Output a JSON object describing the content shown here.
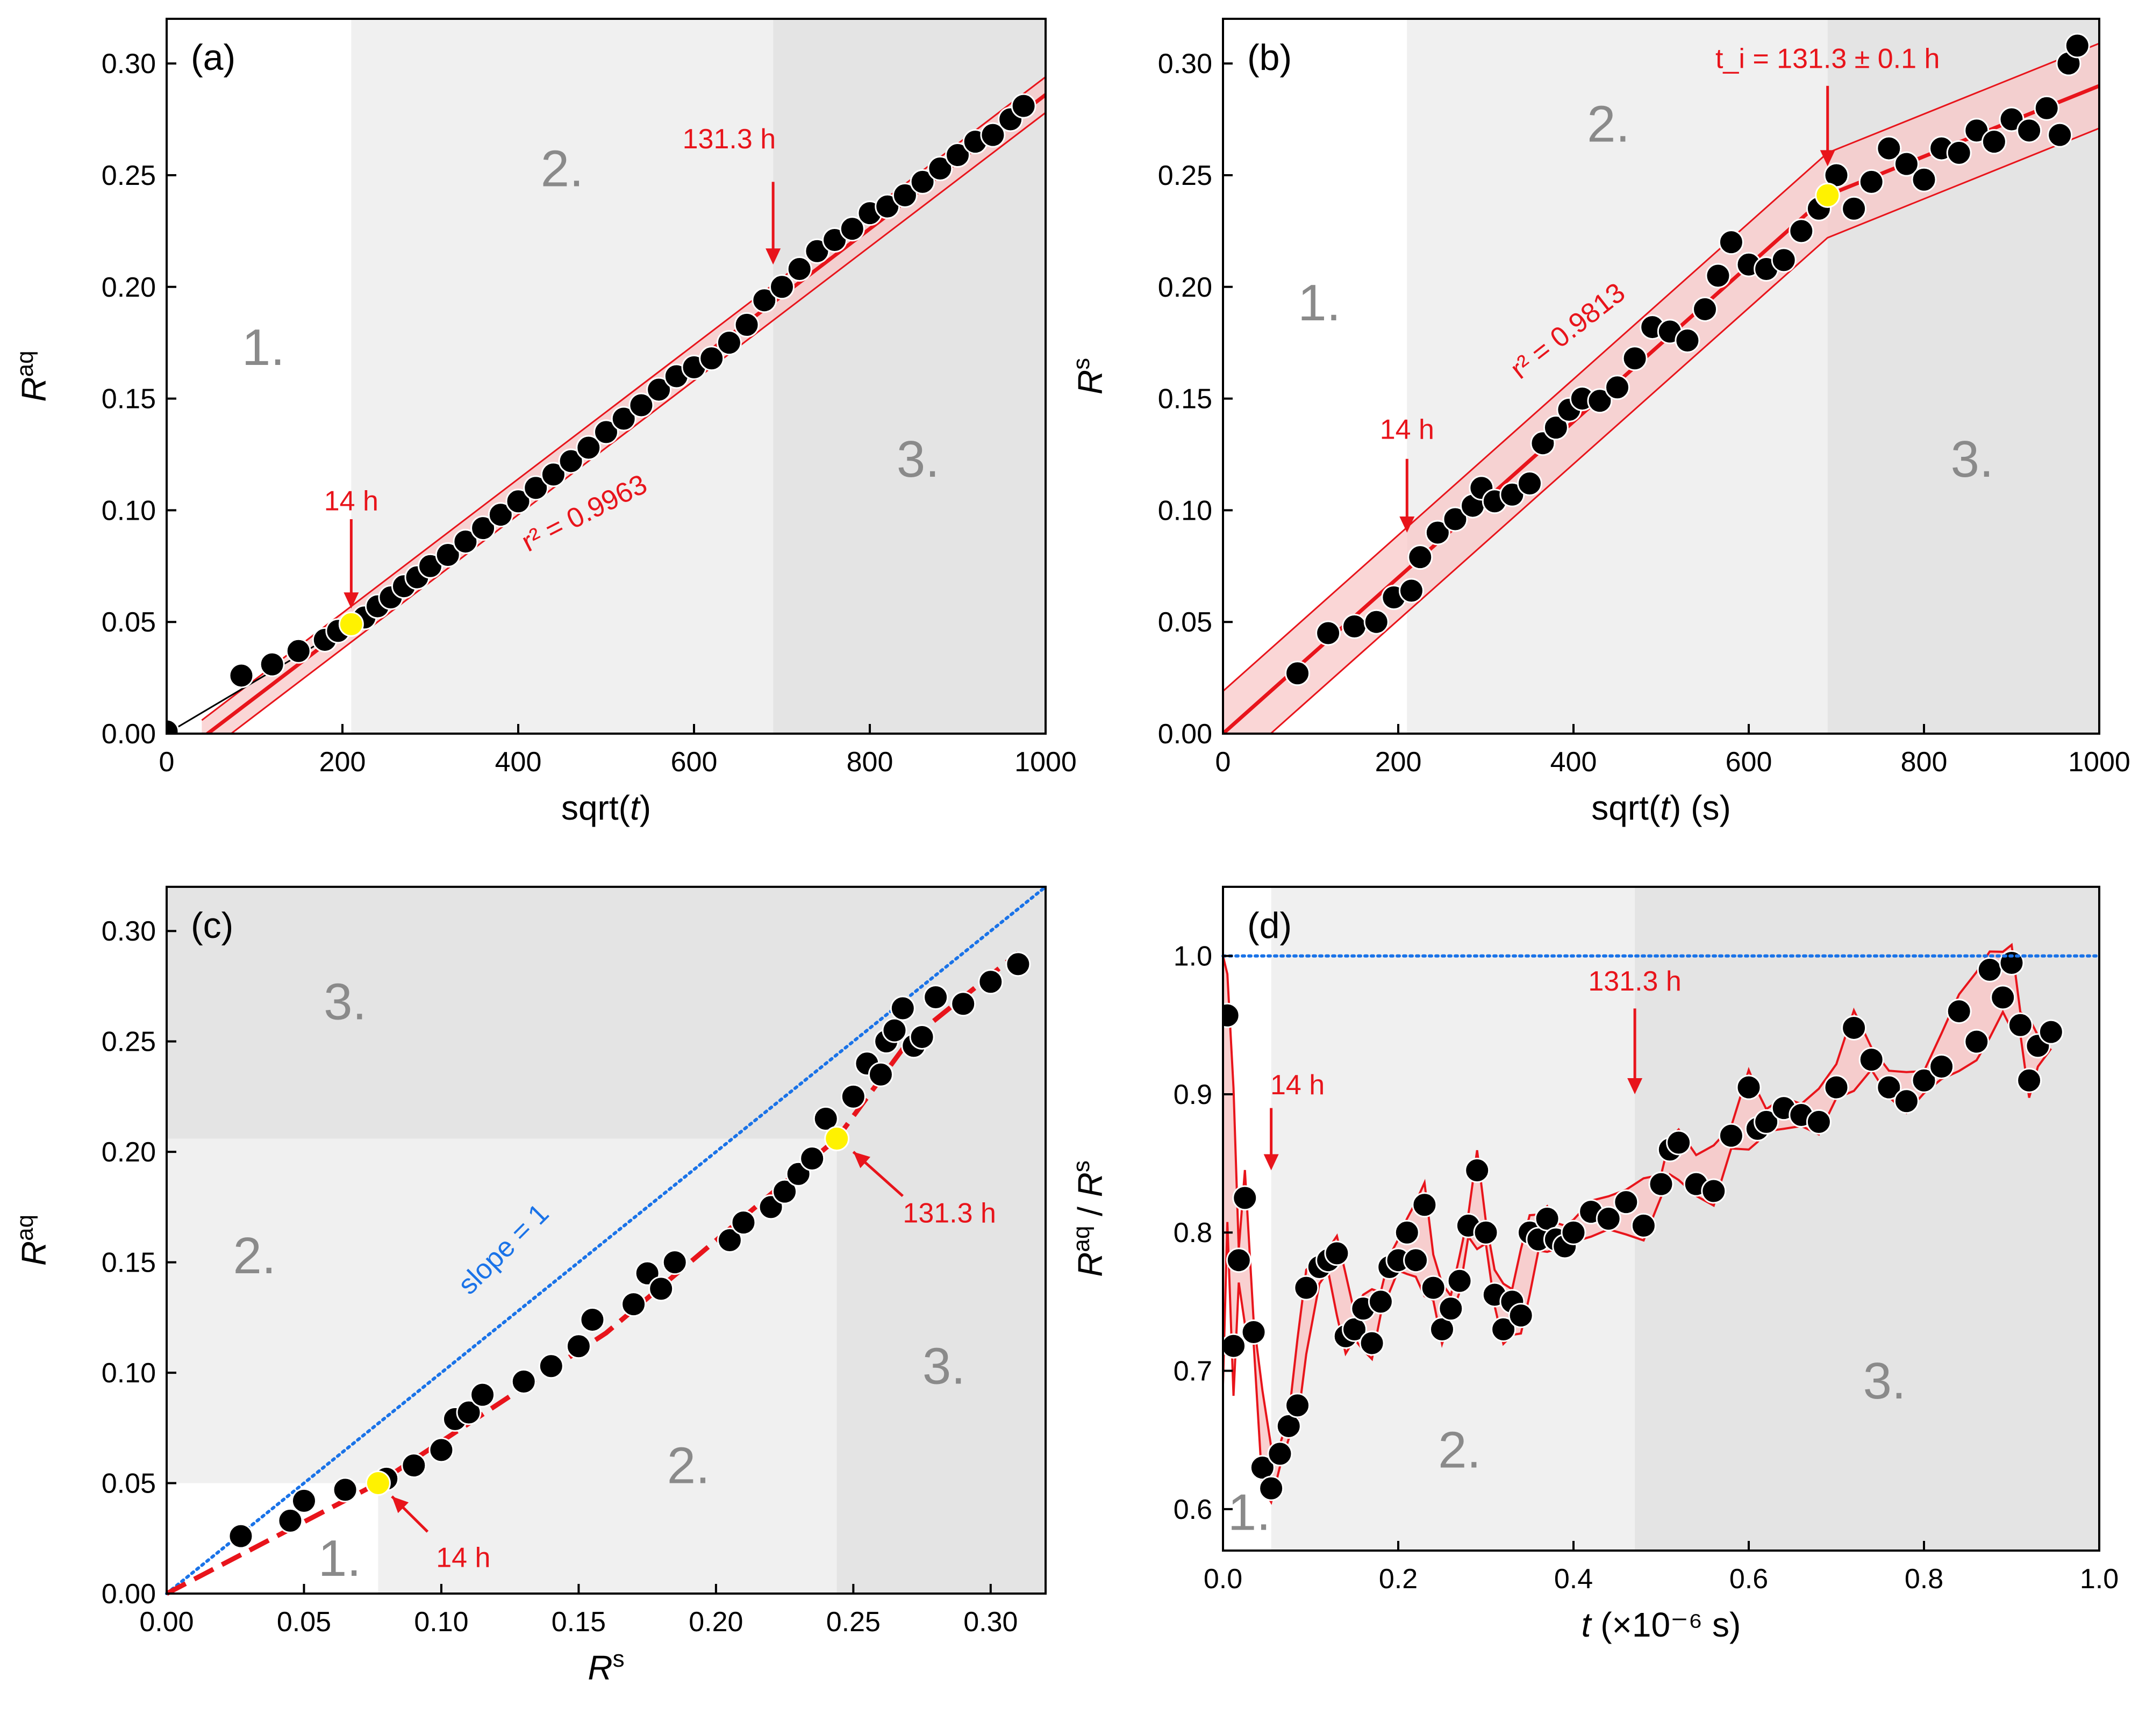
{
  "colors": {
    "fit": "#e8141b",
    "band_fill": "#f8c8c8",
    "marker": "#000000",
    "marker_edge": "#ffffff",
    "highlight": "#fff200",
    "slope_line": "#1a73e8",
    "region1": "#ffffff",
    "region2": "#f0f0f0",
    "region3": "#e4e4e4",
    "region_text": "#8a8a8a"
  },
  "chart_data": [
    {
      "id": "a",
      "type": "scatter",
      "panel_label": "(a)",
      "xlabel": "sqrt(t)",
      "ylabel": "R^aq",
      "xlim": [
        0,
        1000
      ],
      "ylim": [
        0,
        0.32
      ],
      "xticks": [
        "0",
        "200",
        "400",
        "600",
        "800",
        "1000"
      ],
      "yticks": [
        "0.00",
        "0.05",
        "0.10",
        "0.15",
        "0.20",
        "0.25",
        "0.30"
      ],
      "regions": [
        {
          "label": "1.",
          "x_from": 0,
          "x_to": 210
        },
        {
          "label": "2.",
          "x_from": 210,
          "x_to": 690
        },
        {
          "label": "3.",
          "x_from": 690,
          "x_to": 1000
        }
      ],
      "fit": {
        "x": [
          210,
          1000
        ],
        "y": [
          0.049,
          0.286
        ],
        "band_halfwidth": 0.008,
        "r2_text": "r² = 0.9963"
      },
      "annotations": [
        {
          "text": "14 h",
          "x": 210,
          "y": 0.049
        },
        {
          "text": "131.3 h",
          "x": 690,
          "y": 0.2
        }
      ],
      "highlight_points": [
        {
          "x": 210,
          "y": 0.049
        }
      ],
      "points": [
        [
          0,
          0.001
        ],
        [
          85,
          0.026
        ],
        [
          120,
          0.031
        ],
        [
          150,
          0.037
        ],
        [
          180,
          0.042
        ],
        [
          195,
          0.046
        ],
        [
          225,
          0.052
        ],
        [
          240,
          0.057
        ],
        [
          255,
          0.061
        ],
        [
          270,
          0.066
        ],
        [
          285,
          0.07
        ],
        [
          300,
          0.075
        ],
        [
          320,
          0.08
        ],
        [
          340,
          0.086
        ],
        [
          360,
          0.092
        ],
        [
          380,
          0.098
        ],
        [
          400,
          0.104
        ],
        [
          420,
          0.11
        ],
        [
          440,
          0.116
        ],
        [
          460,
          0.122
        ],
        [
          480,
          0.128
        ],
        [
          500,
          0.135
        ],
        [
          520,
          0.141
        ],
        [
          540,
          0.147
        ],
        [
          560,
          0.154
        ],
        [
          580,
          0.16
        ],
        [
          600,
          0.164
        ],
        [
          620,
          0.168
        ],
        [
          640,
          0.175
        ],
        [
          660,
          0.183
        ],
        [
          680,
          0.194
        ],
        [
          700,
          0.2
        ],
        [
          720,
          0.208
        ],
        [
          740,
          0.216
        ],
        [
          760,
          0.221
        ],
        [
          780,
          0.226
        ],
        [
          800,
          0.233
        ],
        [
          820,
          0.236
        ],
        [
          840,
          0.241
        ],
        [
          860,
          0.247
        ],
        [
          880,
          0.253
        ],
        [
          900,
          0.259
        ],
        [
          920,
          0.265
        ],
        [
          940,
          0.268
        ],
        [
          960,
          0.275
        ],
        [
          975,
          0.281
        ]
      ]
    },
    {
      "id": "b",
      "type": "scatter",
      "panel_label": "(b)",
      "xlabel": "sqrt(t) (s)",
      "ylabel": "R^s",
      "xlim": [
        0,
        1000
      ],
      "ylim": [
        0,
        0.32
      ],
      "xticks": [
        "0",
        "200",
        "400",
        "600",
        "800",
        "1000"
      ],
      "yticks": [
        "0.00",
        "0.05",
        "0.10",
        "0.15",
        "0.20",
        "0.25",
        "0.30"
      ],
      "regions": [
        {
          "label": "1.",
          "x_from": 0,
          "x_to": 210
        },
        {
          "label": "2.",
          "x_from": 210,
          "x_to": 690
        },
        {
          "label": "3.",
          "x_from": 690,
          "x_to": 1000
        }
      ],
      "fit": {
        "x": [
          0,
          690,
          1000
        ],
        "y": [
          0.0,
          0.241,
          0.29
        ],
        "band_halfwidth": 0.019,
        "r2_text": "r² = 0.9813"
      },
      "annotations": [
        {
          "text": "14 h",
          "x": 210,
          "y": 0.09
        },
        {
          "text": "t_i = 131.3 ± 0.1 h",
          "x": 690,
          "y": 0.25
        }
      ],
      "highlight_points": [
        {
          "x": 690,
          "y": 0.241
        }
      ],
      "points": [
        [
          85,
          0.027
        ],
        [
          120,
          0.045
        ],
        [
          150,
          0.048
        ],
        [
          175,
          0.05
        ],
        [
          195,
          0.061
        ],
        [
          215,
          0.064
        ],
        [
          225,
          0.079
        ],
        [
          245,
          0.09
        ],
        [
          265,
          0.096
        ],
        [
          285,
          0.102
        ],
        [
          295,
          0.11
        ],
        [
          310,
          0.104
        ],
        [
          330,
          0.107
        ],
        [
          350,
          0.112
        ],
        [
          365,
          0.13
        ],
        [
          380,
          0.137
        ],
        [
          395,
          0.145
        ],
        [
          410,
          0.15
        ],
        [
          430,
          0.149
        ],
        [
          450,
          0.155
        ],
        [
          470,
          0.168
        ],
        [
          490,
          0.182
        ],
        [
          510,
          0.18
        ],
        [
          530,
          0.176
        ],
        [
          550,
          0.19
        ],
        [
          565,
          0.205
        ],
        [
          580,
          0.22
        ],
        [
          600,
          0.21
        ],
        [
          620,
          0.208
        ],
        [
          640,
          0.212
        ],
        [
          660,
          0.225
        ],
        [
          680,
          0.235
        ],
        [
          700,
          0.25
        ],
        [
          720,
          0.235
        ],
        [
          740,
          0.247
        ],
        [
          760,
          0.262
        ],
        [
          780,
          0.255
        ],
        [
          800,
          0.248
        ],
        [
          820,
          0.262
        ],
        [
          840,
          0.26
        ],
        [
          860,
          0.27
        ],
        [
          880,
          0.265
        ],
        [
          900,
          0.275
        ],
        [
          920,
          0.27
        ],
        [
          940,
          0.28
        ],
        [
          955,
          0.268
        ],
        [
          965,
          0.3
        ],
        [
          975,
          0.308
        ]
      ]
    },
    {
      "id": "c",
      "type": "scatter",
      "panel_label": "(c)",
      "xlabel": "R^s",
      "ylabel": "R^aq",
      "xlim": [
        0,
        0.32
      ],
      "ylim": [
        0,
        0.32
      ],
      "xticks": [
        "0.00",
        "0.05",
        "0.10",
        "0.15",
        "0.20",
        "0.25",
        "0.30"
      ],
      "yticks": [
        "0.00",
        "0.05",
        "0.10",
        "0.15",
        "0.20",
        "0.25",
        "0.30"
      ],
      "region_labels": [
        {
          "label": "1.",
          "x": 0.063,
          "y": 0.008
        },
        {
          "label": "2.",
          "x": 0.032,
          "y": 0.145
        },
        {
          "label": "2.",
          "x": 0.19,
          "y": 0.05
        },
        {
          "label": "3.",
          "x": 0.065,
          "y": 0.26
        },
        {
          "label": "3.",
          "x": 0.283,
          "y": 0.095
        }
      ],
      "slope_line_text": "slope = 1",
      "fit": {
        "x": [
          0,
          0.077,
          0.16,
          0.244,
          0.27,
          0.31
        ],
        "y": [
          0,
          0.05,
          0.118,
          0.206,
          0.25,
          0.29
        ]
      },
      "annotations": [
        {
          "text": "14 h",
          "x": 0.077,
          "y": 0.05
        },
        {
          "text": "131.3 h",
          "x": 0.244,
          "y": 0.206
        }
      ],
      "highlight_points": [
        {
          "x": 0.077,
          "y": 0.05
        },
        {
          "x": 0.244,
          "y": 0.206
        }
      ],
      "points": [
        [
          0.027,
          0.026
        ],
        [
          0.045,
          0.033
        ],
        [
          0.05,
          0.042
        ],
        [
          0.065,
          0.047
        ],
        [
          0.08,
          0.052
        ],
        [
          0.09,
          0.058
        ],
        [
          0.1,
          0.065
        ],
        [
          0.105,
          0.079
        ],
        [
          0.11,
          0.082
        ],
        [
          0.115,
          0.09
        ],
        [
          0.13,
          0.096
        ],
        [
          0.14,
          0.103
        ],
        [
          0.15,
          0.112
        ],
        [
          0.155,
          0.124
        ],
        [
          0.17,
          0.131
        ],
        [
          0.175,
          0.145
        ],
        [
          0.18,
          0.138
        ],
        [
          0.185,
          0.15
        ],
        [
          0.205,
          0.16
        ],
        [
          0.21,
          0.168
        ],
        [
          0.22,
          0.175
        ],
        [
          0.225,
          0.182
        ],
        [
          0.23,
          0.19
        ],
        [
          0.235,
          0.197
        ],
        [
          0.24,
          0.215
        ],
        [
          0.25,
          0.225
        ],
        [
          0.255,
          0.24
        ],
        [
          0.26,
          0.235
        ],
        [
          0.262,
          0.25
        ],
        [
          0.265,
          0.255
        ],
        [
          0.268,
          0.265
        ],
        [
          0.272,
          0.248
        ],
        [
          0.275,
          0.252
        ],
        [
          0.28,
          0.27
        ],
        [
          0.29,
          0.267
        ],
        [
          0.3,
          0.277
        ],
        [
          0.31,
          0.285
        ]
      ]
    },
    {
      "id": "d",
      "type": "line",
      "panel_label": "(d)",
      "xlabel": "t (×10⁻⁶ s)",
      "ylabel": "R^aq / R^s",
      "xlim": [
        0,
        1.0
      ],
      "ylim": [
        0.57,
        1.05
      ],
      "xticks": [
        "0.0",
        "0.2",
        "0.4",
        "0.6",
        "0.8",
        "1.0"
      ],
      "yticks": [
        "0.6",
        "0.7",
        "0.8",
        "0.9",
        "1.0"
      ],
      "regions": [
        {
          "label": "1.",
          "x_from": 0,
          "x_to": 0.055
        },
        {
          "label": "2.",
          "x_from": 0.055,
          "x_to": 0.47
        },
        {
          "label": "3.",
          "x_from": 0.47,
          "x_to": 1.0
        }
      ],
      "reference_line": 1.0,
      "annotations": [
        {
          "text": "14 h",
          "x": 0.055,
          "y": 0.84
        },
        {
          "text": "131.3 h",
          "x": 0.47,
          "y": 0.9
        }
      ],
      "points": [
        [
          0.005,
          0.957
        ],
        [
          0.012,
          0.718
        ],
        [
          0.018,
          0.78
        ],
        [
          0.025,
          0.825
        ],
        [
          0.035,
          0.728
        ],
        [
          0.045,
          0.63
        ],
        [
          0.055,
          0.615
        ],
        [
          0.065,
          0.64
        ],
        [
          0.075,
          0.66
        ],
        [
          0.085,
          0.675
        ],
        [
          0.095,
          0.76
        ],
        [
          0.11,
          0.775
        ],
        [
          0.12,
          0.78
        ],
        [
          0.13,
          0.785
        ],
        [
          0.14,
          0.725
        ],
        [
          0.15,
          0.73
        ],
        [
          0.16,
          0.745
        ],
        [
          0.17,
          0.72
        ],
        [
          0.18,
          0.75
        ],
        [
          0.19,
          0.775
        ],
        [
          0.2,
          0.78
        ],
        [
          0.21,
          0.8
        ],
        [
          0.22,
          0.78
        ],
        [
          0.23,
          0.82
        ],
        [
          0.24,
          0.76
        ],
        [
          0.25,
          0.73
        ],
        [
          0.26,
          0.745
        ],
        [
          0.27,
          0.765
        ],
        [
          0.28,
          0.805
        ],
        [
          0.29,
          0.845
        ],
        [
          0.3,
          0.8
        ],
        [
          0.31,
          0.755
        ],
        [
          0.32,
          0.73
        ],
        [
          0.33,
          0.75
        ],
        [
          0.34,
          0.74
        ],
        [
          0.35,
          0.8
        ],
        [
          0.36,
          0.795
        ],
        [
          0.37,
          0.81
        ],
        [
          0.38,
          0.795
        ],
        [
          0.39,
          0.79
        ],
        [
          0.4,
          0.8
        ],
        [
          0.42,
          0.815
        ],
        [
          0.44,
          0.81
        ],
        [
          0.46,
          0.822
        ],
        [
          0.48,
          0.805
        ],
        [
          0.5,
          0.835
        ],
        [
          0.51,
          0.86
        ],
        [
          0.52,
          0.865
        ],
        [
          0.54,
          0.835
        ],
        [
          0.56,
          0.83
        ],
        [
          0.58,
          0.87
        ],
        [
          0.6,
          0.905
        ],
        [
          0.61,
          0.875
        ],
        [
          0.62,
          0.88
        ],
        [
          0.64,
          0.89
        ],
        [
          0.66,
          0.885
        ],
        [
          0.68,
          0.88
        ],
        [
          0.7,
          0.905
        ],
        [
          0.72,
          0.948
        ],
        [
          0.74,
          0.925
        ],
        [
          0.76,
          0.905
        ],
        [
          0.78,
          0.895
        ],
        [
          0.8,
          0.91
        ],
        [
          0.82,
          0.92
        ],
        [
          0.84,
          0.96
        ],
        [
          0.86,
          0.938
        ],
        [
          0.875,
          0.99
        ],
        [
          0.89,
          0.97
        ],
        [
          0.9,
          0.995
        ],
        [
          0.91,
          0.95
        ],
        [
          0.92,
          0.91
        ],
        [
          0.93,
          0.935
        ],
        [
          0.945,
          0.945
        ]
      ]
    }
  ]
}
